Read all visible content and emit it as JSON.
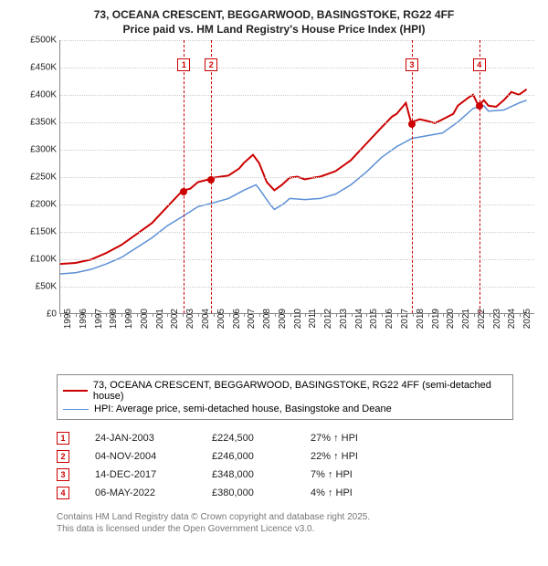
{
  "title_line1": "73, OCEANA CRESCENT, BEGGARWOOD, BASINGSTOKE, RG22 4FF",
  "title_line2": "Price paid vs. HM Land Registry's House Price Index (HPI)",
  "chart": {
    "type": "line",
    "background_color": "#ffffff",
    "grid_color": "#cccccc",
    "axis_color": "#888888",
    "x_min": 1995,
    "x_max": 2026,
    "y_min": 0,
    "y_max": 500000,
    "y_ticks": [
      0,
      50000,
      100000,
      150000,
      200000,
      250000,
      300000,
      350000,
      400000,
      450000,
      500000
    ],
    "y_tick_labels": [
      "£0",
      "£50K",
      "£100K",
      "£150K",
      "£200K",
      "£250K",
      "£300K",
      "£350K",
      "£400K",
      "£450K",
      "£500K"
    ],
    "x_ticks": [
      1995,
      1996,
      1997,
      1998,
      1999,
      2000,
      2001,
      2002,
      2003,
      2004,
      2005,
      2006,
      2007,
      2008,
      2009,
      2010,
      2011,
      2012,
      2013,
      2014,
      2015,
      2016,
      2017,
      2018,
      2019,
      2020,
      2021,
      2022,
      2023,
      2024,
      2025
    ],
    "label_fontsize": 10,
    "series": [
      {
        "name": "price_paid",
        "label": "73, OCEANA CRESCENT, BEGGARWOOD, BASINGSTOKE, RG22 4FF (semi-detached house)",
        "color": "#cc0000",
        "line_width": 2,
        "data": [
          [
            1995,
            90000
          ],
          [
            1996,
            92000
          ],
          [
            1997,
            98000
          ],
          [
            1998,
            110000
          ],
          [
            1999,
            125000
          ],
          [
            2000,
            145000
          ],
          [
            2001,
            165000
          ],
          [
            2002,
            195000
          ],
          [
            2003,
            224500
          ],
          [
            2003.5,
            228000
          ],
          [
            2004,
            240000
          ],
          [
            2004.85,
            246000
          ],
          [
            2005,
            248000
          ],
          [
            2005.5,
            250000
          ],
          [
            2006,
            252000
          ],
          [
            2006.7,
            265000
          ],
          [
            2007,
            275000
          ],
          [
            2007.6,
            290000
          ],
          [
            2008,
            275000
          ],
          [
            2008.5,
            240000
          ],
          [
            2009,
            225000
          ],
          [
            2009.5,
            235000
          ],
          [
            2010,
            248000
          ],
          [
            2010.5,
            250000
          ],
          [
            2011,
            245000
          ],
          [
            2011.5,
            248000
          ],
          [
            2012,
            250000
          ],
          [
            2013,
            260000
          ],
          [
            2014,
            280000
          ],
          [
            2015,
            310000
          ],
          [
            2016,
            340000
          ],
          [
            2016.7,
            360000
          ],
          [
            2017,
            365000
          ],
          [
            2017.6,
            385000
          ],
          [
            2017.95,
            348000
          ],
          [
            2018,
            350000
          ],
          [
            2018.5,
            355000
          ],
          [
            2019,
            352000
          ],
          [
            2019.5,
            348000
          ],
          [
            2020,
            355000
          ],
          [
            2020.7,
            365000
          ],
          [
            2021,
            380000
          ],
          [
            2021.7,
            395000
          ],
          [
            2022,
            400000
          ],
          [
            2022.35,
            380000
          ],
          [
            2022.7,
            390000
          ],
          [
            2023,
            380000
          ],
          [
            2023.5,
            378000
          ],
          [
            2024,
            390000
          ],
          [
            2024.5,
            405000
          ],
          [
            2025,
            400000
          ],
          [
            2025.5,
            410000
          ]
        ]
      },
      {
        "name": "hpi",
        "label": "HPI: Average price, semi-detached house, Basingstoke and Deane",
        "color": "#5b8fd6",
        "line_width": 1.5,
        "data": [
          [
            1995,
            72000
          ],
          [
            1996,
            74000
          ],
          [
            1997,
            80000
          ],
          [
            1998,
            90000
          ],
          [
            1999,
            102000
          ],
          [
            2000,
            120000
          ],
          [
            2001,
            138000
          ],
          [
            2002,
            160000
          ],
          [
            2003,
            177000
          ],
          [
            2004,
            195000
          ],
          [
            2005,
            202000
          ],
          [
            2006,
            210000
          ],
          [
            2007,
            225000
          ],
          [
            2007.8,
            235000
          ],
          [
            2008,
            228000
          ],
          [
            2008.7,
            200000
          ],
          [
            2009,
            190000
          ],
          [
            2009.6,
            200000
          ],
          [
            2010,
            210000
          ],
          [
            2011,
            208000
          ],
          [
            2012,
            210000
          ],
          [
            2013,
            218000
          ],
          [
            2014,
            235000
          ],
          [
            2015,
            258000
          ],
          [
            2016,
            285000
          ],
          [
            2017,
            305000
          ],
          [
            2018,
            320000
          ],
          [
            2019,
            325000
          ],
          [
            2020,
            330000
          ],
          [
            2021,
            350000
          ],
          [
            2022,
            375000
          ],
          [
            2022.7,
            380000
          ],
          [
            2023,
            370000
          ],
          [
            2024,
            372000
          ],
          [
            2025,
            385000
          ],
          [
            2025.5,
            390000
          ]
        ]
      }
    ],
    "sale_markers": [
      {
        "idx": "1",
        "x": 2003.07,
        "y": 224500,
        "color": "#cc0000"
      },
      {
        "idx": "2",
        "x": 2004.85,
        "y": 246000,
        "color": "#cc0000"
      },
      {
        "idx": "3",
        "x": 2017.95,
        "y": 348000,
        "color": "#cc0000"
      },
      {
        "idx": "4",
        "x": 2022.35,
        "y": 380000,
        "color": "#cc0000"
      }
    ]
  },
  "legend": {
    "border_color": "#888888",
    "items": [
      {
        "color": "#cc0000",
        "width": 2,
        "label": "73, OCEANA CRESCENT, BEGGARWOOD, BASINGSTOKE, RG22 4FF (semi-detached house)"
      },
      {
        "color": "#5b8fd6",
        "width": 1.5,
        "label": "HPI: Average price, semi-detached house, Basingstoke and Deane"
      }
    ]
  },
  "sales": [
    {
      "idx": "1",
      "date": "24-JAN-2003",
      "price": "£224,500",
      "pct": "27% ↑ HPI",
      "color": "#cc0000"
    },
    {
      "idx": "2",
      "date": "04-NOV-2004",
      "price": "£246,000",
      "pct": "22% ↑ HPI",
      "color": "#cc0000"
    },
    {
      "idx": "3",
      "date": "14-DEC-2017",
      "price": "£348,000",
      "pct": "7% ↑ HPI",
      "color": "#cc0000"
    },
    {
      "idx": "4",
      "date": "06-MAY-2022",
      "price": "£380,000",
      "pct": "4% ↑ HPI",
      "color": "#cc0000"
    }
  ],
  "attribution_line1": "Contains HM Land Registry data © Crown copyright and database right 2025.",
  "attribution_line2": "This data is licensed under the Open Government Licence v3.0."
}
